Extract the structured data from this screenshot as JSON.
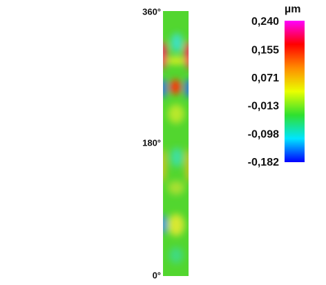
{
  "chart_data": {
    "type": "heatmap",
    "unit": "µm",
    "ylim": [
      0,
      360
    ],
    "yticks": [
      {
        "value": 0,
        "label": "0°"
      },
      {
        "value": 180,
        "label": "180°"
      },
      {
        "value": 360,
        "label": "360°"
      }
    ],
    "clim": [
      -0.182,
      0.24
    ],
    "cticks": [
      {
        "value": 0.24,
        "label": "0,240"
      },
      {
        "value": 0.155,
        "label": "0,155"
      },
      {
        "value": 0.071,
        "label": "0,071"
      },
      {
        "value": -0.013,
        "label": "-0,013"
      },
      {
        "value": -0.098,
        "label": "-0,098"
      },
      {
        "value": -0.182,
        "label": "-0,182"
      }
    ],
    "colormap": [
      "#0000ff",
      "#00e5ff",
      "#2fe02f",
      "#eaff00",
      "#ff8c00",
      "#ff0000",
      "#ff00ff"
    ]
  }
}
